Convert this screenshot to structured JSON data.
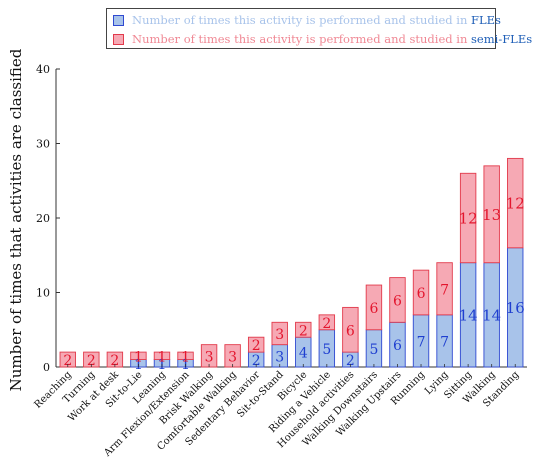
{
  "legend": {
    "fle_text": "Number of times this activity is performed and studied in",
    "fle_key": "FLEs",
    "semi_text": "Number of times this activity is performed and studied in",
    "semi_key": "semi-FLEs"
  },
  "colors": {
    "fle_fill": "#a8c3ea",
    "fle_stroke": "#2f49d1",
    "fle_label": "#1f3fd0",
    "semi_fill": "#f6a9b4",
    "semi_stroke": "#e23a4b",
    "semi_label": "#e3162e"
  },
  "chart_data": {
    "type": "bar",
    "stacked": true,
    "categories": [
      "Reaching",
      "Turning",
      "Work at desk",
      "Sit-to-Lie",
      "Leaning",
      "Arm Flexion/Extension",
      "Brisk Walking",
      "Comfortable Walking",
      "Sedentary Behavior",
      "Sit-to-Stand",
      "Bicycle",
      "Riding a Vehicle",
      "Household activities",
      "Walking Downstairs",
      "Walking Upstairs",
      "Running",
      "Lying",
      "Sitting",
      "Walking",
      "Standing"
    ],
    "series": [
      {
        "name": "FLEs",
        "values": [
          0,
          0,
          0,
          1,
          1,
          1,
          0,
          0,
          2,
          3,
          4,
          5,
          2,
          5,
          6,
          7,
          7,
          14,
          14,
          16
        ],
        "labels": [
          "",
          "",
          "",
          "1",
          "1",
          "1",
          "",
          "",
          "2",
          "3",
          "4",
          "5",
          "2",
          "5",
          "6",
          "7",
          "7",
          "14",
          "14",
          "16"
        ]
      },
      {
        "name": "semi-FLEs",
        "values": [
          2,
          2,
          2,
          1,
          1,
          1,
          3,
          3,
          2,
          3,
          2,
          2,
          6,
          6,
          6,
          6,
          7,
          12,
          13,
          12
        ],
        "labels": [
          "2",
          "2",
          "2",
          "1",
          "1",
          "1",
          "3",
          "3",
          "2",
          "3",
          "2",
          "2",
          "6",
          "6",
          "6",
          "6",
          "7",
          "12",
          "13",
          "12"
        ]
      }
    ],
    "ylabel": "Number of times that activities are classified",
    "xlabel": "",
    "ylim": [
      0,
      40
    ],
    "yticks": [
      "0",
      "10",
      "20",
      "30",
      "40"
    ]
  }
}
